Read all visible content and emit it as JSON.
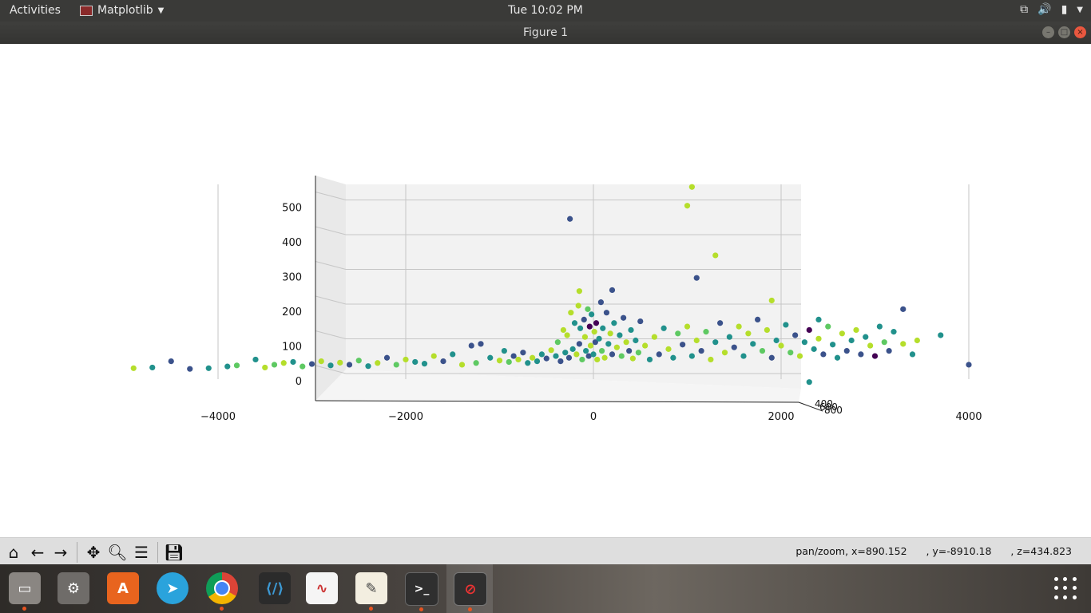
{
  "topbar": {
    "activities": "Activities",
    "app_name": "Matplotlib",
    "clock": "Tue 10:02 PM"
  },
  "window": {
    "title": "Figure 1"
  },
  "status": {
    "mode": "pan/zoom, x=890.152",
    "y": ", y=-8910.18",
    "z": ", z=434.823"
  },
  "toolbar_icons": [
    "home-icon",
    "back-icon",
    "forward-icon",
    "pan-icon",
    "zoom-icon",
    "configure-subplots-icon",
    "save-icon"
  ],
  "dock_icons": [
    "files",
    "settings",
    "software",
    "telegram",
    "chrome",
    "vscode",
    "document-viewer",
    "text-editor",
    "terminal",
    "matplotlib-figure"
  ],
  "colors": {
    "viridis": [
      "#440154",
      "#3b528b",
      "#21918c",
      "#5ec962",
      "#b5de2b",
      "#fde725"
    ]
  },
  "chart_data": {
    "type": "scatter",
    "projection": "3d",
    "title": "",
    "xlabel": "",
    "ylabel": "",
    "zlabel": "",
    "xlim": [
      -5500,
      5500
    ],
    "zlim": [
      0,
      560
    ],
    "x_ticks": [
      "−4000",
      "−2000",
      "0",
      "2000",
      "4000"
    ],
    "z_ticks": [
      "0",
      "100",
      "200",
      "300",
      "400",
      "500"
    ],
    "y_ticks_overlapped": [
      "400",
      "600",
      "800"
    ],
    "grid": true,
    "colormap": "viridis",
    "highlighted_points": [
      {
        "x": 1050,
        "z": 542,
        "c": 0.8
      },
      {
        "x": 1000,
        "z": 488,
        "c": 0.8
      },
      {
        "x": -250,
        "z": 450,
        "c": 0.2
      },
      {
        "x": 1300,
        "z": 345,
        "c": 0.7
      },
      {
        "x": 1100,
        "z": 280,
        "c": 0.25
      },
      {
        "x": 1900,
        "z": 215,
        "c": 0.7
      },
      {
        "x": 3300,
        "z": 190,
        "c": 0.2
      },
      {
        "x": 4000,
        "z": 30,
        "c": 0.25
      },
      {
        "x": -4900,
        "z": 20,
        "c": 0.8
      },
      {
        "x": -4700,
        "z": 22,
        "c": 0.4
      },
      {
        "x": 3700,
        "z": 115,
        "c": 0.4
      },
      {
        "x": 2400,
        "z": 160,
        "c": 0.3
      },
      {
        "x": 2300,
        "z": -20,
        "c": 0.4
      },
      {
        "x": 200,
        "z": 245,
        "c": 0.2
      },
      {
        "x": -150,
        "z": 242,
        "c": 0.8
      }
    ],
    "cluster_points": [
      [
        -4500,
        40,
        0.2
      ],
      [
        -4300,
        18,
        0.25
      ],
      [
        -4100,
        20,
        0.3
      ],
      [
        -3900,
        25,
        0.4
      ],
      [
        -3800,
        28,
        0.6
      ],
      [
        -3600,
        45,
        0.3
      ],
      [
        -3500,
        22,
        0.7
      ],
      [
        -3400,
        30,
        0.5
      ],
      [
        -3300,
        35,
        0.8
      ],
      [
        -3200,
        38,
        0.35
      ],
      [
        -3100,
        25,
        0.6
      ],
      [
        -3000,
        32,
        0.2
      ],
      [
        -2900,
        40,
        0.7
      ],
      [
        -2800,
        28,
        0.4
      ],
      [
        -2700,
        36,
        0.8
      ],
      [
        -2600,
        30,
        0.25
      ],
      [
        -2500,
        42,
        0.6
      ],
      [
        -2400,
        26,
        0.3
      ],
      [
        -2300,
        35,
        0.75
      ],
      [
        -2200,
        50,
        0.2
      ],
      [
        -2100,
        30,
        0.55
      ],
      [
        -2000,
        45,
        0.8
      ],
      [
        -1900,
        38,
        0.3
      ],
      [
        -1800,
        33,
        0.45
      ],
      [
        -1700,
        55,
        0.7
      ],
      [
        -1600,
        40,
        0.2
      ],
      [
        -1500,
        60,
        0.35
      ],
      [
        -1400,
        30,
        0.8
      ],
      [
        -1300,
        85,
        0.25
      ],
      [
        -1250,
        35,
        0.6
      ],
      [
        -1200,
        90,
        0.25
      ],
      [
        -1100,
        50,
        0.4
      ],
      [
        -1000,
        42,
        0.8
      ],
      [
        -950,
        70,
        0.3
      ],
      [
        -900,
        38,
        0.55
      ],
      [
        -850,
        55,
        0.25
      ],
      [
        -800,
        45,
        0.7
      ],
      [
        -750,
        65,
        0.2
      ],
      [
        -700,
        35,
        0.4
      ],
      [
        -650,
        50,
        0.8
      ],
      [
        -600,
        40,
        0.3
      ],
      [
        -550,
        60,
        0.45
      ],
      [
        -500,
        48,
        0.25
      ],
      [
        -450,
        72,
        0.75
      ],
      [
        -400,
        55,
        0.3
      ],
      [
        -380,
        95,
        0.6
      ],
      [
        -350,
        40,
        0.2
      ],
      [
        -320,
        130,
        0.8
      ],
      [
        -300,
        65,
        0.35
      ],
      [
        -280,
        115,
        0.7
      ],
      [
        -260,
        50,
        0.25
      ],
      [
        -240,
        180,
        0.75
      ],
      [
        -220,
        75,
        0.4
      ],
      [
        -200,
        150,
        0.3
      ],
      [
        -180,
        60,
        0.8
      ],
      [
        -160,
        200,
        0.7
      ],
      [
        -150,
        90,
        0.25
      ],
      [
        -140,
        135,
        0.45
      ],
      [
        -120,
        45,
        0.6
      ],
      [
        -100,
        160,
        0.2
      ],
      [
        -90,
        110,
        0.8
      ],
      [
        -80,
        70,
        0.35
      ],
      [
        -60,
        190,
        0.65
      ],
      [
        -50,
        55,
        0.25
      ],
      [
        -40,
        140,
        0.05
      ],
      [
        -30,
        85,
        0.8
      ],
      [
        -20,
        175,
        0.3
      ],
      [
        0,
        60,
        0.45
      ],
      [
        10,
        125,
        0.7
      ],
      [
        20,
        95,
        0.25
      ],
      [
        30,
        150,
        0.05
      ],
      [
        40,
        45,
        0.8
      ],
      [
        60,
        105,
        0.35
      ],
      [
        80,
        210,
        0.25
      ],
      [
        90,
        70,
        0.6
      ],
      [
        100,
        135,
        0.3
      ],
      [
        120,
        50,
        0.8
      ],
      [
        140,
        180,
        0.2
      ],
      [
        160,
        90,
        0.45
      ],
      [
        180,
        120,
        0.7
      ],
      [
        200,
        60,
        0.25
      ],
      [
        220,
        150,
        0.35
      ],
      [
        250,
        80,
        0.8
      ],
      [
        280,
        115,
        0.3
      ],
      [
        300,
        55,
        0.6
      ],
      [
        320,
        165,
        0.25
      ],
      [
        350,
        95,
        0.7
      ],
      [
        380,
        70,
        0.2
      ],
      [
        400,
        130,
        0.45
      ],
      [
        420,
        48,
        0.8
      ],
      [
        450,
        100,
        0.3
      ],
      [
        480,
        65,
        0.55
      ],
      [
        500,
        155,
        0.25
      ],
      [
        550,
        85,
        0.8
      ],
      [
        600,
        45,
        0.35
      ],
      [
        650,
        110,
        0.7
      ],
      [
        700,
        60,
        0.25
      ],
      [
        750,
        135,
        0.45
      ],
      [
        800,
        75,
        0.8
      ],
      [
        850,
        50,
        0.3
      ],
      [
        900,
        120,
        0.6
      ],
      [
        950,
        88,
        0.2
      ],
      [
        1000,
        140,
        0.75
      ],
      [
        1050,
        55,
        0.35
      ],
      [
        1100,
        100,
        0.8
      ],
      [
        1150,
        70,
        0.25
      ],
      [
        1200,
        125,
        0.5
      ],
      [
        1250,
        45,
        0.7
      ],
      [
        1300,
        95,
        0.3
      ],
      [
        1350,
        150,
        0.2
      ],
      [
        1400,
        65,
        0.8
      ],
      [
        1450,
        110,
        0.4
      ],
      [
        1500,
        80,
        0.25
      ],
      [
        1550,
        140,
        0.7
      ],
      [
        1600,
        55,
        0.35
      ],
      [
        1650,
        120,
        0.8
      ],
      [
        1700,
        90,
        0.3
      ],
      [
        1750,
        160,
        0.25
      ],
      [
        1800,
        70,
        0.6
      ],
      [
        1850,
        130,
        0.75
      ],
      [
        1900,
        50,
        0.2
      ],
      [
        1950,
        100,
        0.4
      ],
      [
        2000,
        85,
        0.8
      ],
      [
        2050,
        145,
        0.3
      ],
      [
        2100,
        65,
        0.5
      ],
      [
        2150,
        115,
        0.25
      ],
      [
        2200,
        55,
        0.7
      ],
      [
        2250,
        95,
        0.35
      ],
      [
        2300,
        130,
        0.05
      ],
      [
        2350,
        75,
        0.3
      ],
      [
        2400,
        105,
        0.8
      ],
      [
        2450,
        60,
        0.25
      ],
      [
        2500,
        140,
        0.65
      ],
      [
        2550,
        88,
        0.4
      ],
      [
        2600,
        50,
        0.3
      ],
      [
        2650,
        120,
        0.8
      ],
      [
        2700,
        70,
        0.2
      ],
      [
        2750,
        100,
        0.45
      ],
      [
        2800,
        130,
        0.7
      ],
      [
        2850,
        60,
        0.25
      ],
      [
        2900,
        110,
        0.35
      ],
      [
        2950,
        85,
        0.8
      ],
      [
        3000,
        55,
        0.05
      ],
      [
        3050,
        140,
        0.3
      ],
      [
        3100,
        95,
        0.6
      ],
      [
        3150,
        70,
        0.25
      ],
      [
        3200,
        125,
        0.45
      ],
      [
        3300,
        90,
        0.8
      ],
      [
        3400,
        60,
        0.35
      ],
      [
        3450,
        100,
        0.75
      ]
    ]
  }
}
